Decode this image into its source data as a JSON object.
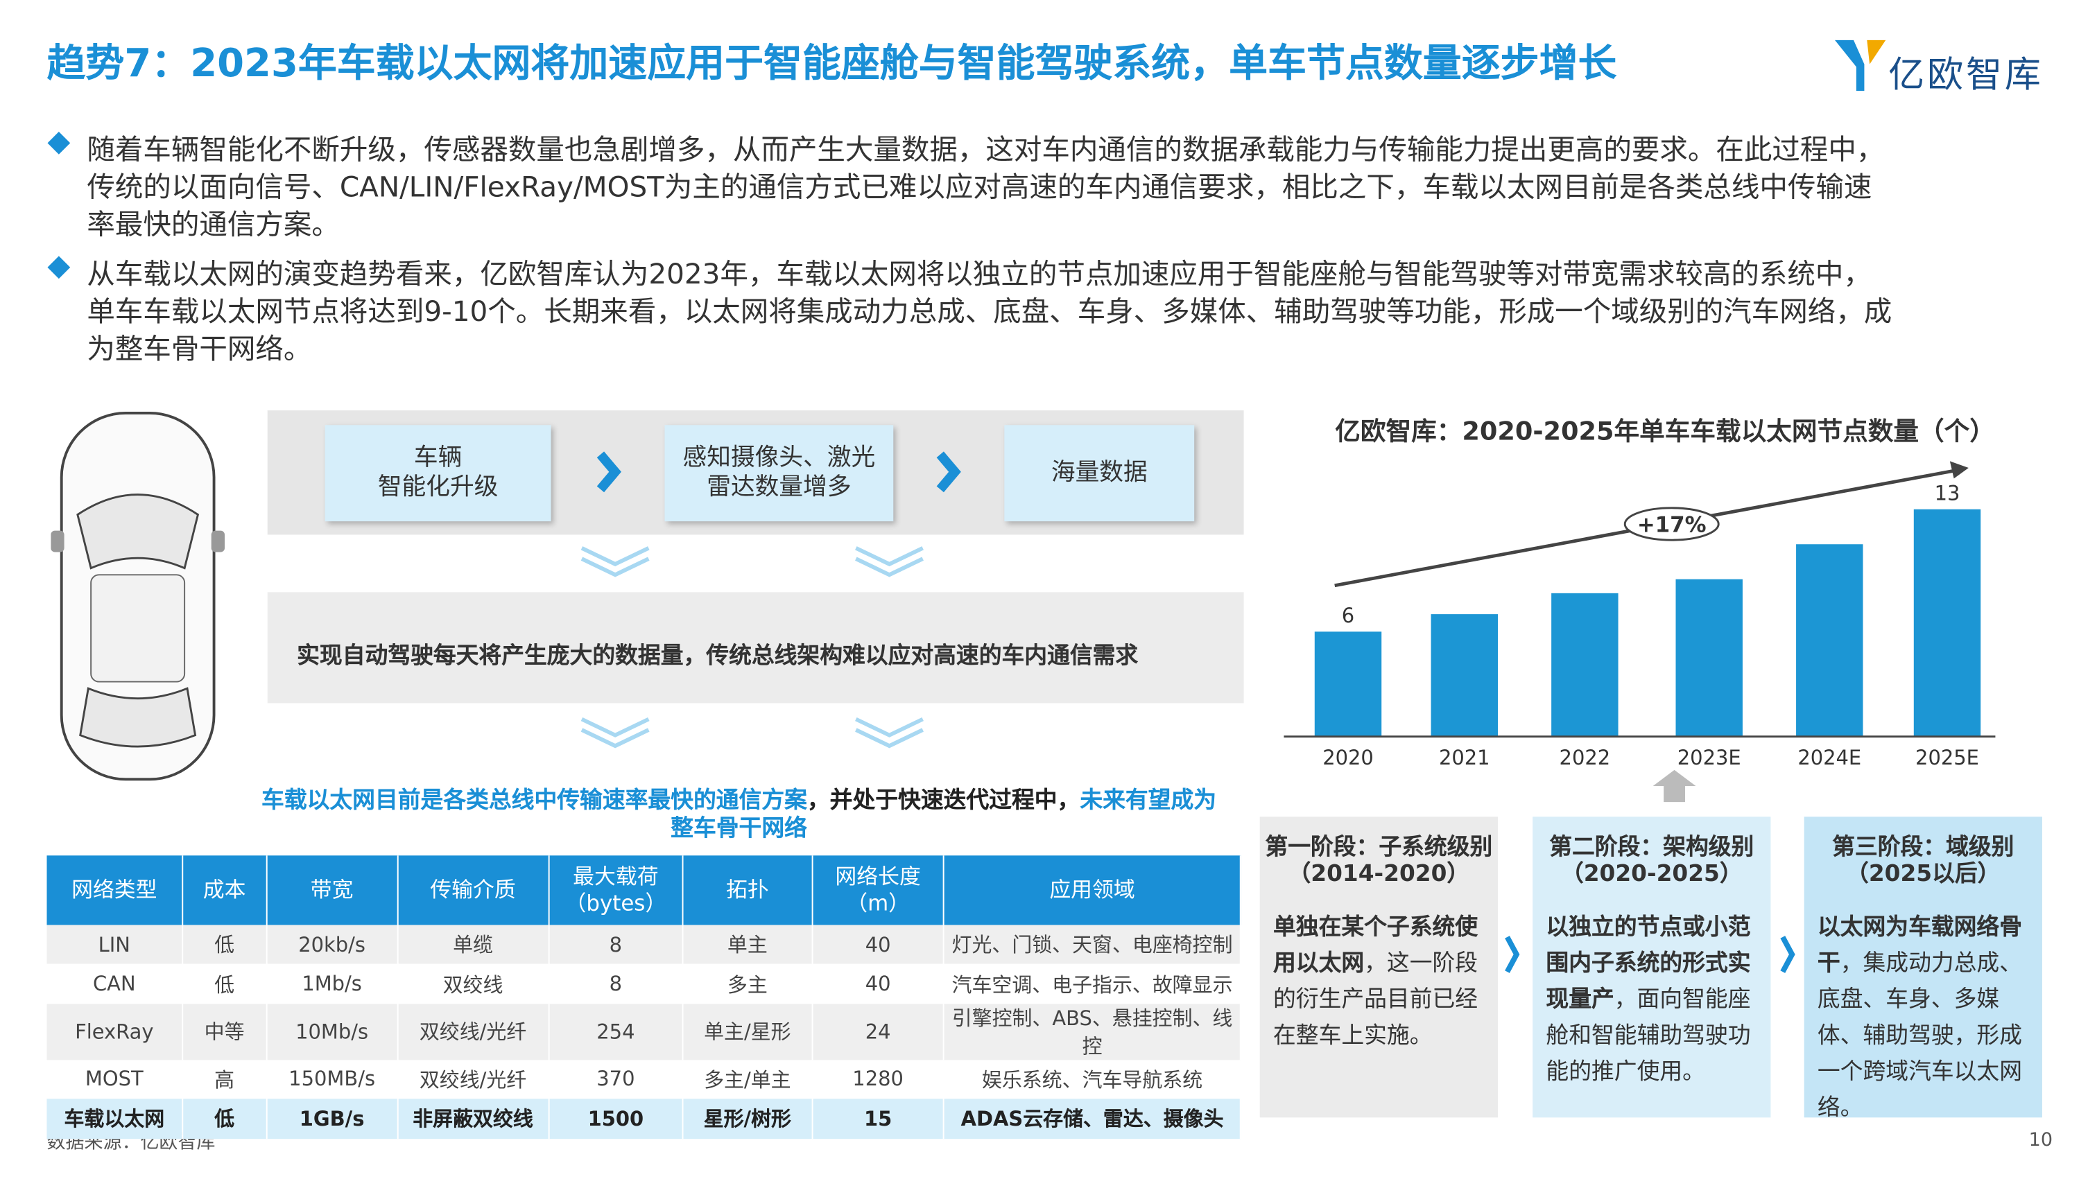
{
  "header": {
    "title": "趋势7：2023年车载以太网将加速应用于智能座舱与智能驾驶系统，单车节点数量逐步增长",
    "logo": "亿欧智库"
  },
  "bullets": [
    [
      "随着车辆智能化不断升级，传感器数量也急剧增多，从而产生大量数据，这对车内通信的数据承载能力与传输能力提出更高的要求。在此过程中，",
      "传统的以面向信号、CAN/LIN/FlexRay/MOST为主的通信方式已难以应对高速的车内通信要求，相比之下，车载以太网目前是各类总线中传输速",
      "率最快的通信方案。"
    ],
    [
      "从车载以太网的演变趋势看来，亿欧智库认为2023年，车载以太网将以独立的节点加速应用于智能座舱与智能驾驶等对带宽需求较高的系统中，",
      "单车车载以太网节点将达到9-10个。长期来看，以太网将集成动力总成、底盘、车身、多媒体、辅助驾驶等功能，形成一个域级别的汽车网络，成",
      "为整车骨干网络。"
    ]
  ],
  "flow": {
    "boxes": [
      [
        "车辆",
        "智能化升级"
      ],
      [
        "感知摄像头、激光",
        "雷达数量增多"
      ],
      [
        "海量数据"
      ]
    ],
    "conclusion": "实现自动驾驶每天将产生庞大的数据量，传统总线架构难以应对高速的车内通信需求"
  },
  "caption": [
    {
      "text": "车载以太网目前是各类总线中传输速率最快的通信方案",
      "color": "#1a8fd6"
    },
    {
      "text": "，并处于快速迭代过程中，",
      "color": "#222222"
    },
    {
      "text": "未来有望成为整车骨干网络",
      "color": "#1a8fd6"
    }
  ],
  "table": {
    "header": [
      "网络类型",
      "成本",
      "带宽",
      "传输介质",
      "最大载荷（bytes）",
      "拓扑",
      "网络长度（m）",
      "应用领域"
    ],
    "rows": [
      [
        "LIN",
        "低",
        "20kb/s",
        "单缆",
        "8",
        "单主",
        "40",
        "灯光、门锁、天窗、电座椅控制"
      ],
      [
        "CAN",
        "低",
        "1Mb/s",
        "双绞线",
        "8",
        "多主",
        "40",
        "汽车空调、电子指示、故障显示"
      ],
      [
        "FlexRay",
        "中等",
        "10Mb/s",
        "双绞线/光纤",
        "254",
        "单主/星形",
        "24",
        "引擎控制、ABS、悬挂控制、线控"
      ],
      [
        "MOST",
        "高",
        "150MB/s",
        "双绞线/光纤",
        "370",
        "多主/单主",
        "1280",
        "娱乐系统、汽车导航系统"
      ],
      [
        "车载以太网",
        "低",
        "1GB/s",
        "非屏蔽双绞线",
        "1500",
        "星形/树形",
        "15",
        "ADAS云存储、雷达、摄像头"
      ]
    ]
  },
  "chart_data": {
    "type": "bar",
    "title": "亿欧智库：2020-2025年单车车载以太网节点数量（个）",
    "categories": [
      "2020",
      "2021",
      "2022",
      "2023E",
      "2024E",
      "2025E"
    ],
    "values": [
      6,
      7,
      8.2,
      9,
      11,
      13
    ],
    "value_labels": [
      "6",
      null,
      null,
      null,
      null,
      "13"
    ],
    "color": "#1c96d4",
    "annotation": "+17%"
  },
  "stages": [
    {
      "title": "第一阶段：子系统级别",
      "period": "（2014-2020）",
      "bold": "单独在某个子系统使用以太网",
      "text": "，这一阶段的衍生产品目前已经在整车上实施。",
      "color": "#ebebeb"
    },
    {
      "title": "第二阶段：架构级别",
      "period": "（2020-2025）",
      "bold": "以独立的节点或小范围内子系统的形式实现量产",
      "text": "，面向智能座舱和智能辅助驾驶功能的推广使用。",
      "color": "#d9eef9"
    },
    {
      "title": "第三阶段：域级别",
      "period": "（2025以后）",
      "bold": "以太网为车载网络骨干",
      "text": "，集成动力总成、底盘、车身、多媒体、辅助驾驶，形成一个跨域汽车以太网络。",
      "color": "#c4e5f6"
    }
  ],
  "footer": {
    "source": "数据来源：亿欧智库",
    "page": "10"
  }
}
